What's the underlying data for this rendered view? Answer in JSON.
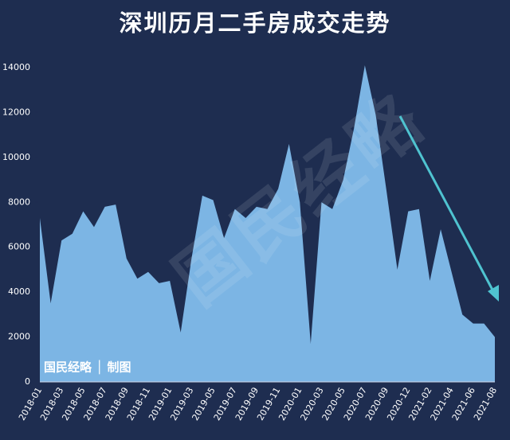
{
  "chart_data": {
    "type": "area",
    "title": "深圳历月二手房成交走势",
    "categories": [
      "2018-01",
      null,
      "2018-03",
      null,
      "2018-05",
      null,
      "2018-07",
      null,
      "2018-09",
      null,
      "2018-11",
      null,
      "2019-01",
      null,
      "2019-03",
      null,
      "2019-05",
      null,
      "2019-07",
      null,
      "2019-09",
      null,
      "2019-11",
      null,
      "2020-01",
      null,
      "2020-03",
      null,
      "2020-05",
      null,
      "2020-07",
      null,
      "2020-09",
      null,
      "2020-12",
      null,
      "2021-02",
      null,
      "2021-04",
      null,
      "2021-06",
      null,
      "2021-08"
    ],
    "values": [
      7300,
      3500,
      6300,
      6600,
      7600,
      6900,
      7800,
      7900,
      5500,
      4600,
      4900,
      4400,
      4500,
      2200,
      5500,
      8300,
      8100,
      6400,
      7700,
      7300,
      7800,
      7700,
      8600,
      10600,
      8000,
      1700,
      8000,
      7700,
      9000,
      11300,
      14100,
      11900,
      8500,
      5000,
      7600,
      7700,
      4500,
      6800,
      4900,
      3000,
      2600,
      2600,
      2000
    ],
    "color": "#7cb5e4",
    "ylim": [
      0,
      14000
    ],
    "yticks": [
      0,
      2000,
      4000,
      6000,
      8000,
      10000,
      12000,
      14000
    ],
    "watermark": "国民经略",
    "source": "国民经略 │ 制图"
  }
}
